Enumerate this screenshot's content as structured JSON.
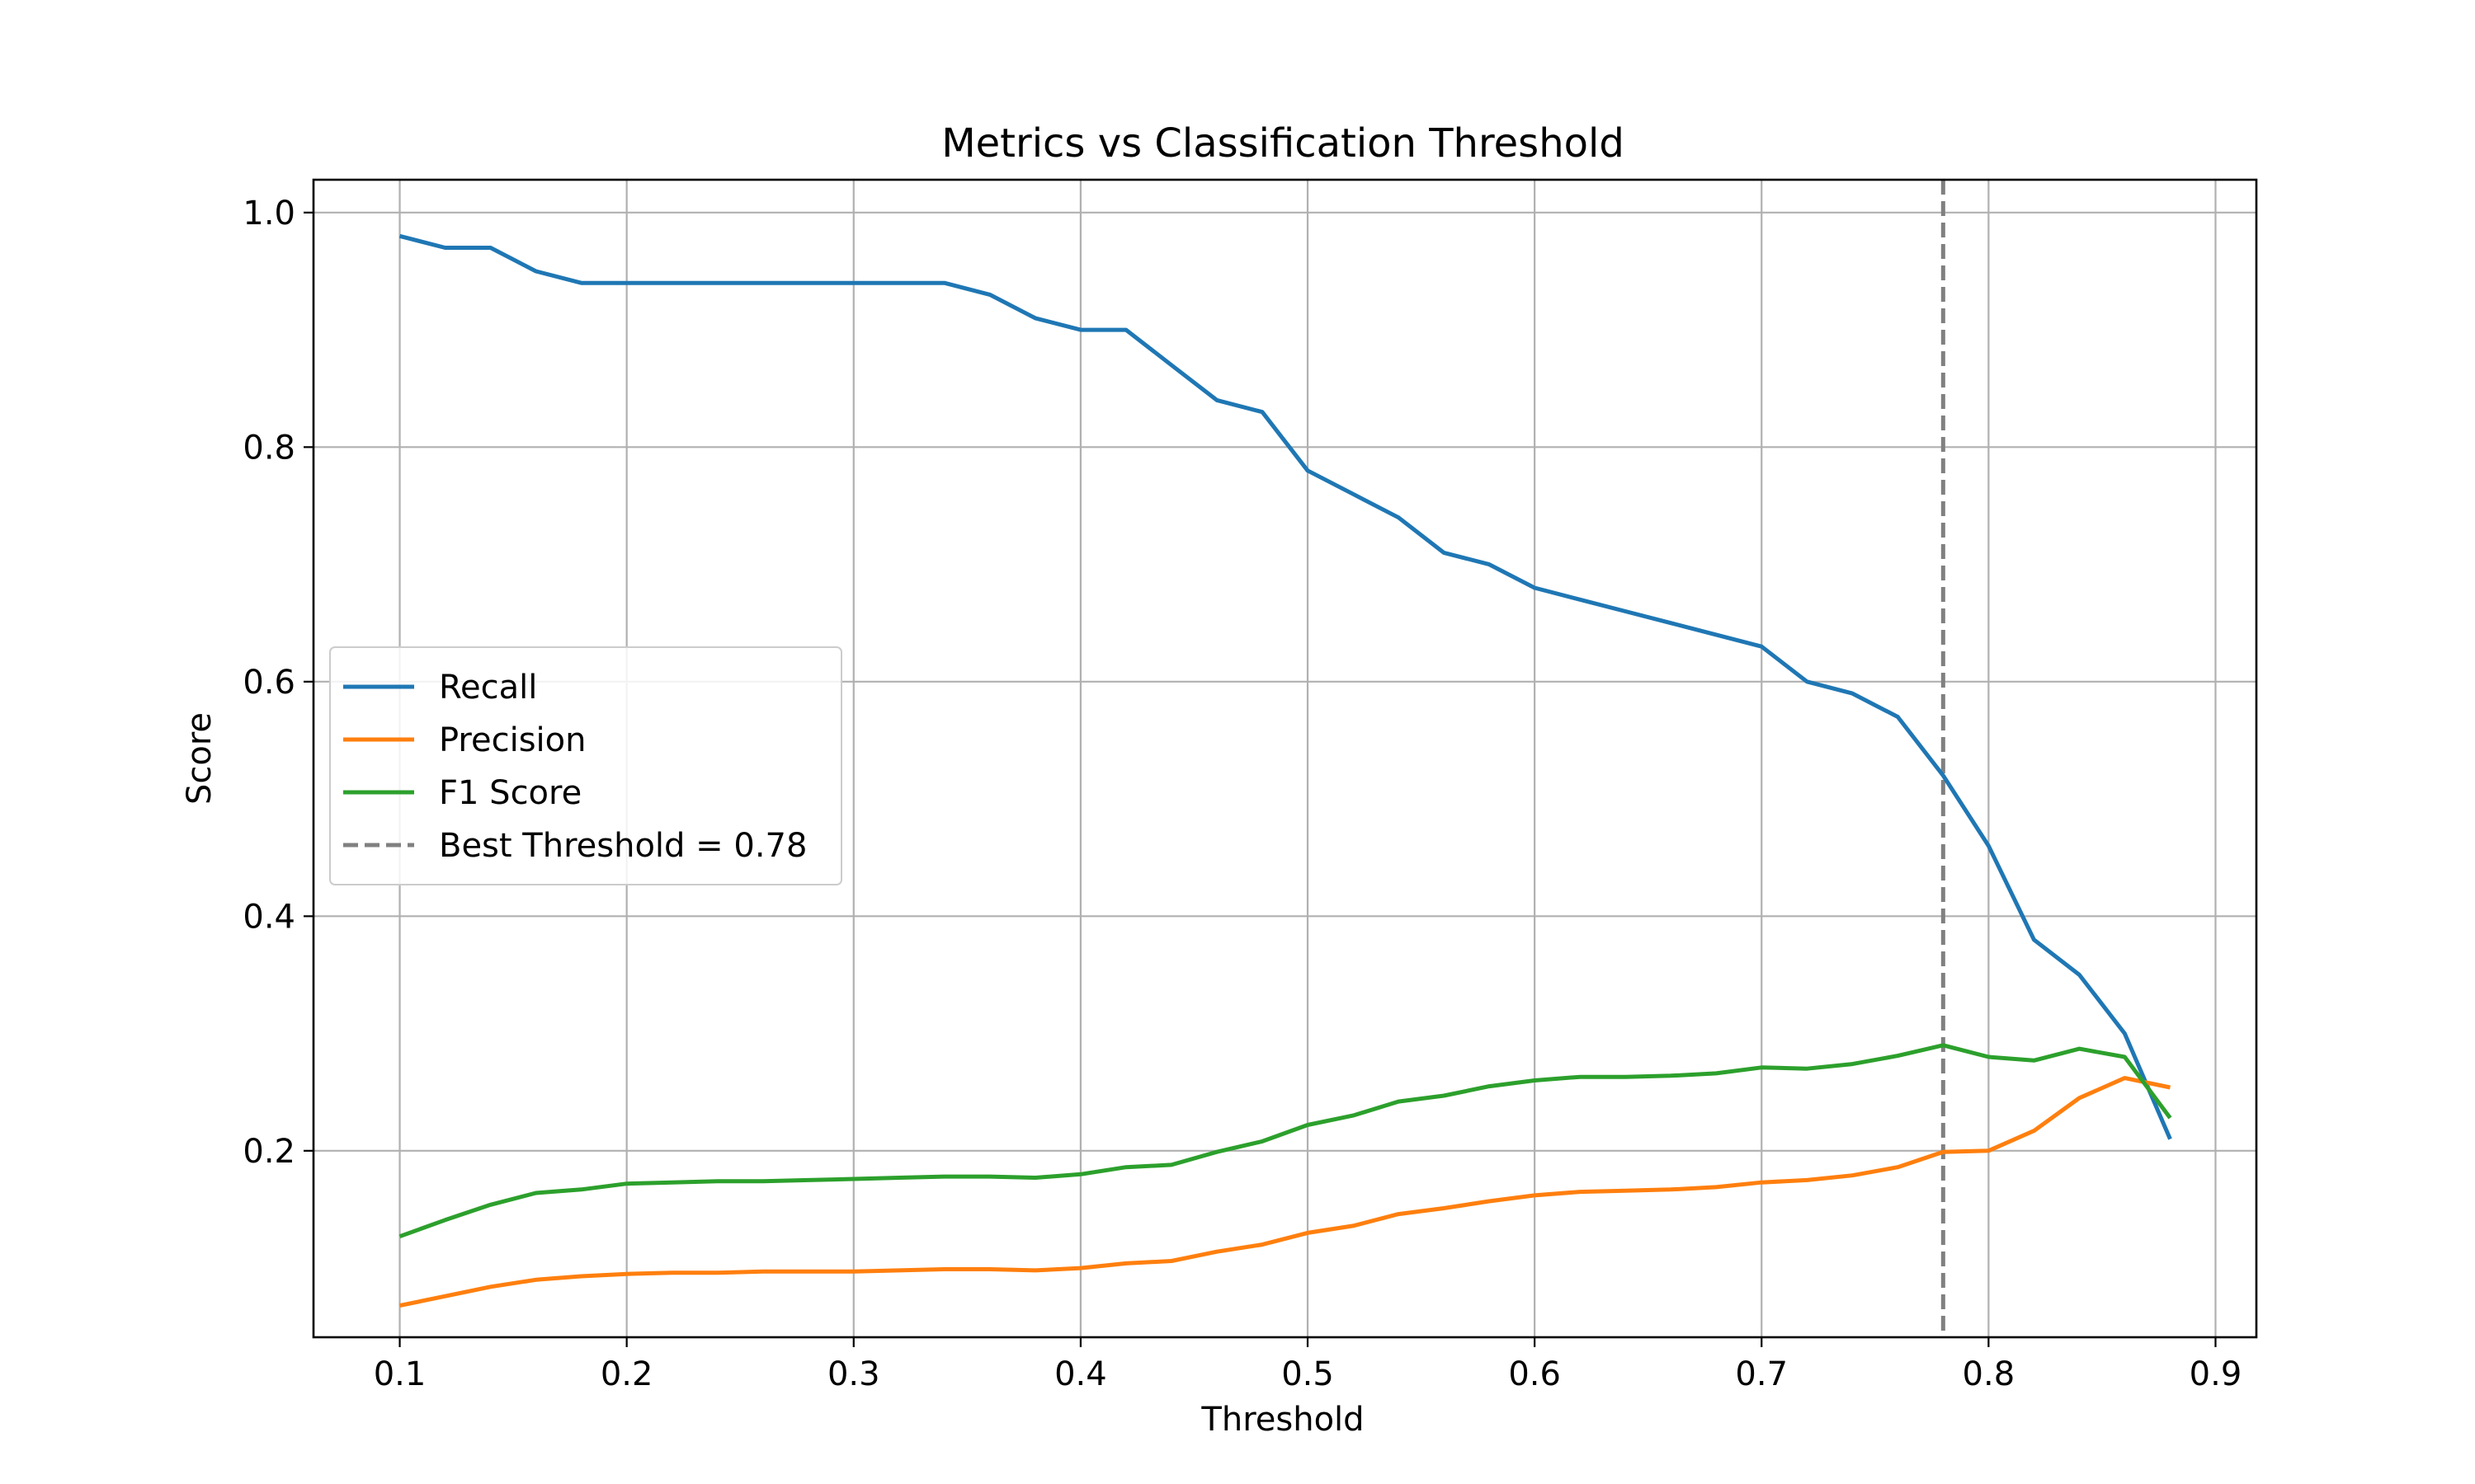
{
  "chart_data": {
    "type": "line",
    "title": "Metrics vs Classification Threshold",
    "xlabel": "Threshold",
    "ylabel": "Score",
    "xlim": [
      0.062,
      0.918
    ],
    "ylim": [
      0.041,
      1.028
    ],
    "xticks": [
      0.1,
      0.2,
      0.3,
      0.4,
      0.5,
      0.6,
      0.7,
      0.8,
      0.9
    ],
    "yticks": [
      0.2,
      0.4,
      0.6,
      0.8,
      1.0
    ],
    "xtick_labels": [
      "0.1",
      "0.2",
      "0.3",
      "0.4",
      "0.5",
      "0.6",
      "0.7",
      "0.8",
      "0.9"
    ],
    "ytick_labels": [
      "0.2",
      "0.4",
      "0.6",
      "0.8",
      "1.0"
    ],
    "grid": true,
    "legend_position": "center-left",
    "x": [
      0.1,
      0.12,
      0.14,
      0.16,
      0.18,
      0.2,
      0.22,
      0.24,
      0.26,
      0.28,
      0.3,
      0.32,
      0.34,
      0.36,
      0.38,
      0.4,
      0.42,
      0.44,
      0.46,
      0.48,
      0.5,
      0.52,
      0.54,
      0.56,
      0.58,
      0.6,
      0.62,
      0.64,
      0.66,
      0.68,
      0.7,
      0.72,
      0.74,
      0.76,
      0.78,
      0.8,
      0.82,
      0.84,
      0.86,
      0.88
    ],
    "series": [
      {
        "name": "Recall",
        "color": "#1f77b4",
        "values": [
          0.98,
          0.97,
          0.97,
          0.95,
          0.94,
          0.94,
          0.94,
          0.94,
          0.94,
          0.94,
          0.94,
          0.94,
          0.94,
          0.93,
          0.91,
          0.9,
          0.9,
          0.87,
          0.84,
          0.83,
          0.78,
          0.76,
          0.74,
          0.71,
          0.7,
          0.68,
          0.67,
          0.66,
          0.65,
          0.64,
          0.63,
          0.6,
          0.59,
          0.57,
          0.52,
          0.46,
          0.38,
          0.35,
          0.3,
          0.21
        ]
      },
      {
        "name": "Precision",
        "color": "#ff7f0e",
        "values": [
          0.068,
          0.076,
          0.084,
          0.09,
          0.093,
          0.095,
          0.096,
          0.096,
          0.097,
          0.097,
          0.097,
          0.098,
          0.099,
          0.099,
          0.098,
          0.1,
          0.104,
          0.106,
          0.114,
          0.12,
          0.13,
          0.136,
          0.146,
          0.151,
          0.157,
          0.162,
          0.165,
          0.166,
          0.167,
          0.169,
          0.173,
          0.175,
          0.179,
          0.186,
          0.199,
          0.2,
          0.217,
          0.245,
          0.262,
          0.254
        ]
      },
      {
        "name": "F1 Score",
        "color": "#2ca02c",
        "values": [
          0.127,
          0.141,
          0.154,
          0.164,
          0.167,
          0.172,
          0.173,
          0.174,
          0.174,
          0.175,
          0.176,
          0.177,
          0.178,
          0.178,
          0.177,
          0.18,
          0.186,
          0.188,
          0.199,
          0.208,
          0.222,
          0.23,
          0.242,
          0.247,
          0.255,
          0.26,
          0.263,
          0.263,
          0.264,
          0.266,
          0.271,
          0.27,
          0.274,
          0.281,
          0.29,
          0.28,
          0.277,
          0.287,
          0.28,
          0.228
        ]
      }
    ],
    "best_threshold": {
      "name": "Best Threshold = 0.78",
      "value": 0.78,
      "color": "#808080",
      "style": "dashed"
    }
  }
}
